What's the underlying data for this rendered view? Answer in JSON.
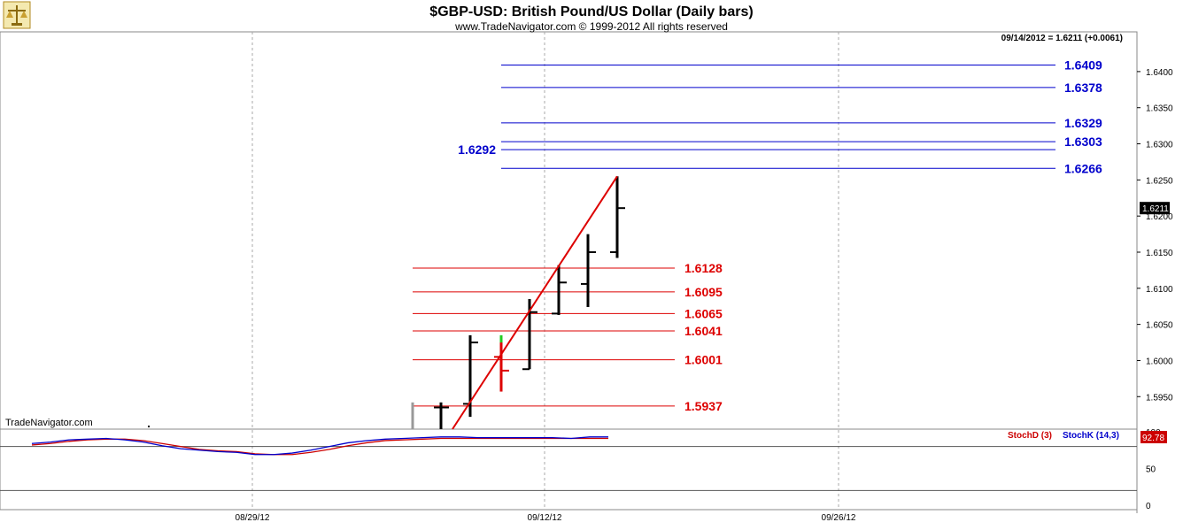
{
  "header": {
    "title": "$GBP-USD:  British Pound/US Dollar  (Daily bars)",
    "copyright": "www.TradeNavigator.com © 1999-2012 All rights reserved",
    "quote": "09/14/2012 = 1.6211 (+0.0061)",
    "watermark": "TradeNavigator.com",
    "logo_icon": "scales-logo-icon"
  },
  "chart_data": [
    {
      "type": "ohlc",
      "title": "$GBP-USD:  British Pound/US Dollar  (Daily bars)",
      "ylim": [
        1.5905,
        1.6455
      ],
      "y_ticks": [
        "1.5950",
        "1.6000",
        "1.6050",
        "1.6100",
        "1.6150",
        "1.6200",
        "1.6250",
        "1.6300",
        "1.6350",
        "1.6400"
      ],
      "x_ticks": [
        "08/29/12",
        "09/12/12",
        "09/26/12"
      ],
      "last_price_label": "1.6211",
      "bars": [
        {
          "date": "09/06/12",
          "open": 1.5935,
          "high": 1.5942,
          "low": 1.5905,
          "close": 1.5935
        },
        {
          "date": "09/07/12",
          "open": 1.594,
          "high": 1.6035,
          "low": 1.5922,
          "close": 1.6025
        },
        {
          "date": "09/10/12",
          "open": 1.6005,
          "high": 1.6025,
          "low": 1.5957,
          "close": 1.5986,
          "color": "#dd0000"
        },
        {
          "date": "09/11/12",
          "open": 1.5988,
          "high": 1.6085,
          "low": 1.5988,
          "close": 1.6067
        },
        {
          "date": "09/12/12",
          "open": 1.6065,
          "high": 1.6132,
          "low": 1.6063,
          "close": 1.6108
        },
        {
          "date": "09/13/12",
          "open": 1.6106,
          "high": 1.6175,
          "low": 1.6074,
          "close": 1.615
        },
        {
          "date": "09/14/12",
          "open": 1.615,
          "high": 1.6255,
          "low": 1.6142,
          "close": 1.6211
        }
      ],
      "trendline": {
        "from": [
          "09/06/12",
          1.59
        ],
        "to": [
          "09/14/12",
          1.6255
        ],
        "color": "#dd0000"
      },
      "support_levels": [
        "1.6128",
        "1.6095",
        "1.6065",
        "1.6041",
        "1.6001",
        "1.5937"
      ],
      "resistance_levels": [
        "1.6409",
        "1.6378",
        "1.6329",
        "1.6303",
        "1.6292",
        "1.6266"
      ],
      "colors": {
        "support": "#dd0000",
        "resistance": "#0000cc",
        "bars": "#000000"
      }
    },
    {
      "type": "line",
      "title": "",
      "ylim": [
        0,
        100
      ],
      "y_ticks": [
        "0",
        "50",
        "100"
      ],
      "last_value_label": "92.78",
      "series": [
        {
          "name": "StochD (3)",
          "color": "#cc0000",
          "values": [
            82,
            84,
            87,
            89,
            90,
            90,
            88,
            84,
            80,
            76,
            74,
            73,
            70,
            69,
            69,
            72,
            76,
            81,
            85,
            88,
            89,
            90,
            91,
            91,
            91,
            91,
            91,
            91,
            91,
            91,
            91,
            91
          ]
        },
        {
          "name": "StochK (14,3)",
          "color": "#0000cc",
          "values": [
            84,
            86,
            89,
            90,
            91,
            89,
            86,
            81,
            77,
            75,
            73,
            72,
            69,
            69,
            71,
            75,
            80,
            85,
            88,
            90,
            91,
            92,
            93,
            93,
            92,
            92,
            92,
            92,
            92,
            91,
            93,
            93
          ]
        }
      ]
    }
  ]
}
